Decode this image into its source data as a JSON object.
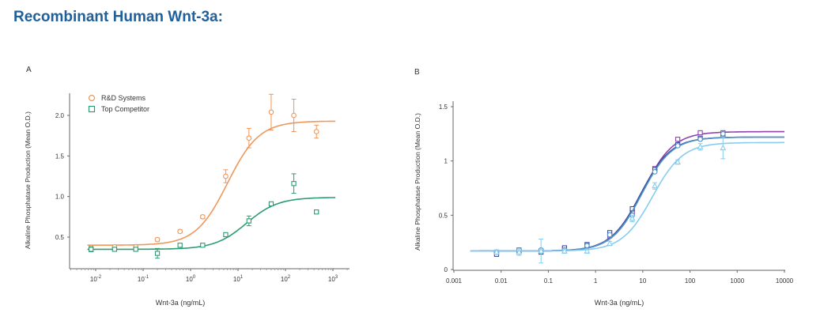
{
  "page": {
    "title": "Recombinant Human Wnt-3a:"
  },
  "colors": {
    "title": "#1f5f9a",
    "rd": "#f0975a",
    "competitor": "#2e9c72",
    "b1": "#8e44ad",
    "b2": "#3b4c9b",
    "b3": "#4f93c9",
    "b4": "#86cdf0"
  },
  "chart_data": [
    {
      "panel": "A",
      "type": "scatter",
      "title": "",
      "xlabel": "Wnt-3a (ng/mL)",
      "ylabel": "Alkaline Phosphatase Production (Mean O.D.)",
      "xscale": "log",
      "xlim": [
        0.003,
        2000
      ],
      "ylim": [
        0.1,
        2.4
      ],
      "x_ticks": [
        {
          "value": 0.01,
          "base": "10",
          "exp": "-2"
        },
        {
          "value": 0.1,
          "base": "10",
          "exp": "-1"
        },
        {
          "value": 1,
          "base": "10",
          "exp": "0"
        },
        {
          "value": 10,
          "base": "10",
          "exp": "1"
        },
        {
          "value": 100,
          "base": "10",
          "exp": "2"
        },
        {
          "value": 1000,
          "base": "10",
          "exp": "3"
        }
      ],
      "y_ticks": [
        {
          "value": 0.5,
          "label": "0.5"
        },
        {
          "value": 1.0,
          "label": "1.0"
        },
        {
          "value": 1.5,
          "label": "1.5"
        },
        {
          "value": 2.0,
          "label": "2.0"
        }
      ],
      "legend_position": "top-left",
      "series": [
        {
          "name": "R&D Systems",
          "marker": "circle",
          "color": "#f0975a",
          "points": [
            {
              "x": 0.008,
              "y": 0.37,
              "err": 0.02
            },
            {
              "x": 0.025,
              "y": 0.38,
              "err": 0.02
            },
            {
              "x": 0.07,
              "y": 0.38,
              "err": 0.02
            },
            {
              "x": 0.2,
              "y": 0.47,
              "err": 0.02
            },
            {
              "x": 0.6,
              "y": 0.57,
              "err": 0.02
            },
            {
              "x": 1.8,
              "y": 0.75,
              "err": 0.02
            },
            {
              "x": 5.5,
              "y": 1.25,
              "err": 0.08
            },
            {
              "x": 17,
              "y": 1.72,
              "err": 0.12
            },
            {
              "x": 50,
              "y": 2.04,
              "err": 0.22
            },
            {
              "x": 150,
              "y": 2.0,
              "err": 0.2
            },
            {
              "x": 450,
              "y": 1.8,
              "err": 0.08
            }
          ],
          "fit": {
            "bottom": 0.4,
            "top": 1.93,
            "ec50": 6,
            "hill": 1.3
          }
        },
        {
          "name": "Top Competitor",
          "marker": "square",
          "color": "#2e9c72",
          "points": [
            {
              "x": 0.008,
              "y": 0.35,
              "err": 0.03
            },
            {
              "x": 0.025,
              "y": 0.35,
              "err": 0.02
            },
            {
              "x": 0.07,
              "y": 0.35,
              "err": 0.02
            },
            {
              "x": 0.2,
              "y": 0.3,
              "err": 0.06
            },
            {
              "x": 0.6,
              "y": 0.4,
              "err": 0.02
            },
            {
              "x": 1.8,
              "y": 0.4,
              "err": 0.02
            },
            {
              "x": 5.5,
              "y": 0.53,
              "err": 0.02
            },
            {
              "x": 17,
              "y": 0.7,
              "err": 0.06
            },
            {
              "x": 50,
              "y": 0.91,
              "err": 0.02
            },
            {
              "x": 150,
              "y": 1.16,
              "err": 0.12
            },
            {
              "x": 450,
              "y": 0.81,
              "err": 0.02
            }
          ],
          "fit": {
            "bottom": 0.35,
            "top": 0.99,
            "ec50": 15,
            "hill": 1.3
          }
        }
      ]
    },
    {
      "panel": "B",
      "type": "scatter",
      "title": "",
      "xlabel": "Wnt-3a (ng/mL)",
      "ylabel": "Alkaline Phosphatase Production (Mean O.D.)",
      "xscale": "log",
      "xlim": [
        0.001,
        10000
      ],
      "ylim": [
        0,
        1.6
      ],
      "x_ticks": [
        {
          "value": 0.001,
          "label": "0.001"
        },
        {
          "value": 0.01,
          "label": "0.01"
        },
        {
          "value": 0.1,
          "label": "0.1"
        },
        {
          "value": 1,
          "label": "1"
        },
        {
          "value": 10,
          "label": "10"
        },
        {
          "value": 100,
          "label": "100"
        },
        {
          "value": 1000,
          "label": "1000"
        },
        {
          "value": 10000,
          "label": "10000"
        }
      ],
      "y_ticks": [
        {
          "value": 0,
          "label": "0"
        },
        {
          "value": 0.5,
          "label": "0.5"
        },
        {
          "value": 1,
          "label": "1"
        },
        {
          "value": 1.5,
          "label": "1.5"
        }
      ],
      "series": [
        {
          "marker": "square",
          "color": "#8e44ad",
          "points": [
            {
              "x": 0.008,
              "y": 0.16
            },
            {
              "x": 0.024,
              "y": 0.18
            },
            {
              "x": 0.07,
              "y": 0.17
            },
            {
              "x": 0.22,
              "y": 0.19
            },
            {
              "x": 0.66,
              "y": 0.22
            },
            {
              "x": 2,
              "y": 0.31
            },
            {
              "x": 6,
              "y": 0.52
            },
            {
              "x": 18,
              "y": 0.93
            },
            {
              "x": 55,
              "y": 1.2
            },
            {
              "x": 165,
              "y": 1.26
            },
            {
              "x": 500,
              "y": 1.26
            }
          ],
          "fit": {
            "bottom": 0.17,
            "top": 1.27,
            "ec50": 10,
            "hill": 1.35
          }
        },
        {
          "marker": "square",
          "color": "#3b4c9b",
          "points": [
            {
              "x": 0.008,
              "y": 0.14
            },
            {
              "x": 0.024,
              "y": 0.17
            },
            {
              "x": 0.07,
              "y": 0.16
            },
            {
              "x": 0.22,
              "y": 0.2
            },
            {
              "x": 0.66,
              "y": 0.23
            },
            {
              "x": 2,
              "y": 0.34
            },
            {
              "x": 6,
              "y": 0.56
            },
            {
              "x": 18,
              "y": 0.92
            },
            {
              "x": 55,
              "y": 1.15
            },
            {
              "x": 165,
              "y": 1.21
            },
            {
              "x": 500,
              "y": 1.24
            }
          ],
          "fit": {
            "bottom": 0.17,
            "top": 1.22,
            "ec50": 9,
            "hill": 1.35
          }
        },
        {
          "marker": "circle",
          "color": "#4f93c9",
          "points": [
            {
              "x": 0.008,
              "y": 0.16
            },
            {
              "x": 0.024,
              "y": 0.18
            },
            {
              "x": 0.07,
              "y": 0.18
            },
            {
              "x": 0.22,
              "y": 0.18
            },
            {
              "x": 0.66,
              "y": 0.22
            },
            {
              "x": 2,
              "y": 0.32
            },
            {
              "x": 6,
              "y": 0.5
            },
            {
              "x": 18,
              "y": 0.9
            },
            {
              "x": 55,
              "y": 1.14
            },
            {
              "x": 165,
              "y": 1.2
            },
            {
              "x": 500,
              "y": 1.25
            }
          ],
          "fit": {
            "bottom": 0.17,
            "top": 1.22,
            "ec50": 9.5,
            "hill": 1.35
          }
        },
        {
          "marker": "triangle",
          "color": "#86cdf0",
          "points": [
            {
              "x": 0.008,
              "y": 0.16,
              "err": 0.02
            },
            {
              "x": 0.024,
              "y": 0.16,
              "err": 0.03
            },
            {
              "x": 0.07,
              "y": 0.17,
              "err": 0.11
            },
            {
              "x": 0.22,
              "y": 0.17,
              "err": 0.02
            },
            {
              "x": 0.66,
              "y": 0.17,
              "err": 0.02
            },
            {
              "x": 2,
              "y": 0.24,
              "err": 0.02
            },
            {
              "x": 6,
              "y": 0.47,
              "err": 0.03
            },
            {
              "x": 18,
              "y": 0.77,
              "err": 0.03
            },
            {
              "x": 55,
              "y": 0.99,
              "err": 0.02
            },
            {
              "x": 165,
              "y": 1.13,
              "err": 0.03
            },
            {
              "x": 500,
              "y": 1.12,
              "err": 0.1
            }
          ],
          "fit": {
            "bottom": 0.17,
            "top": 1.17,
            "ec50": 16,
            "hill": 1.35
          }
        }
      ]
    }
  ]
}
